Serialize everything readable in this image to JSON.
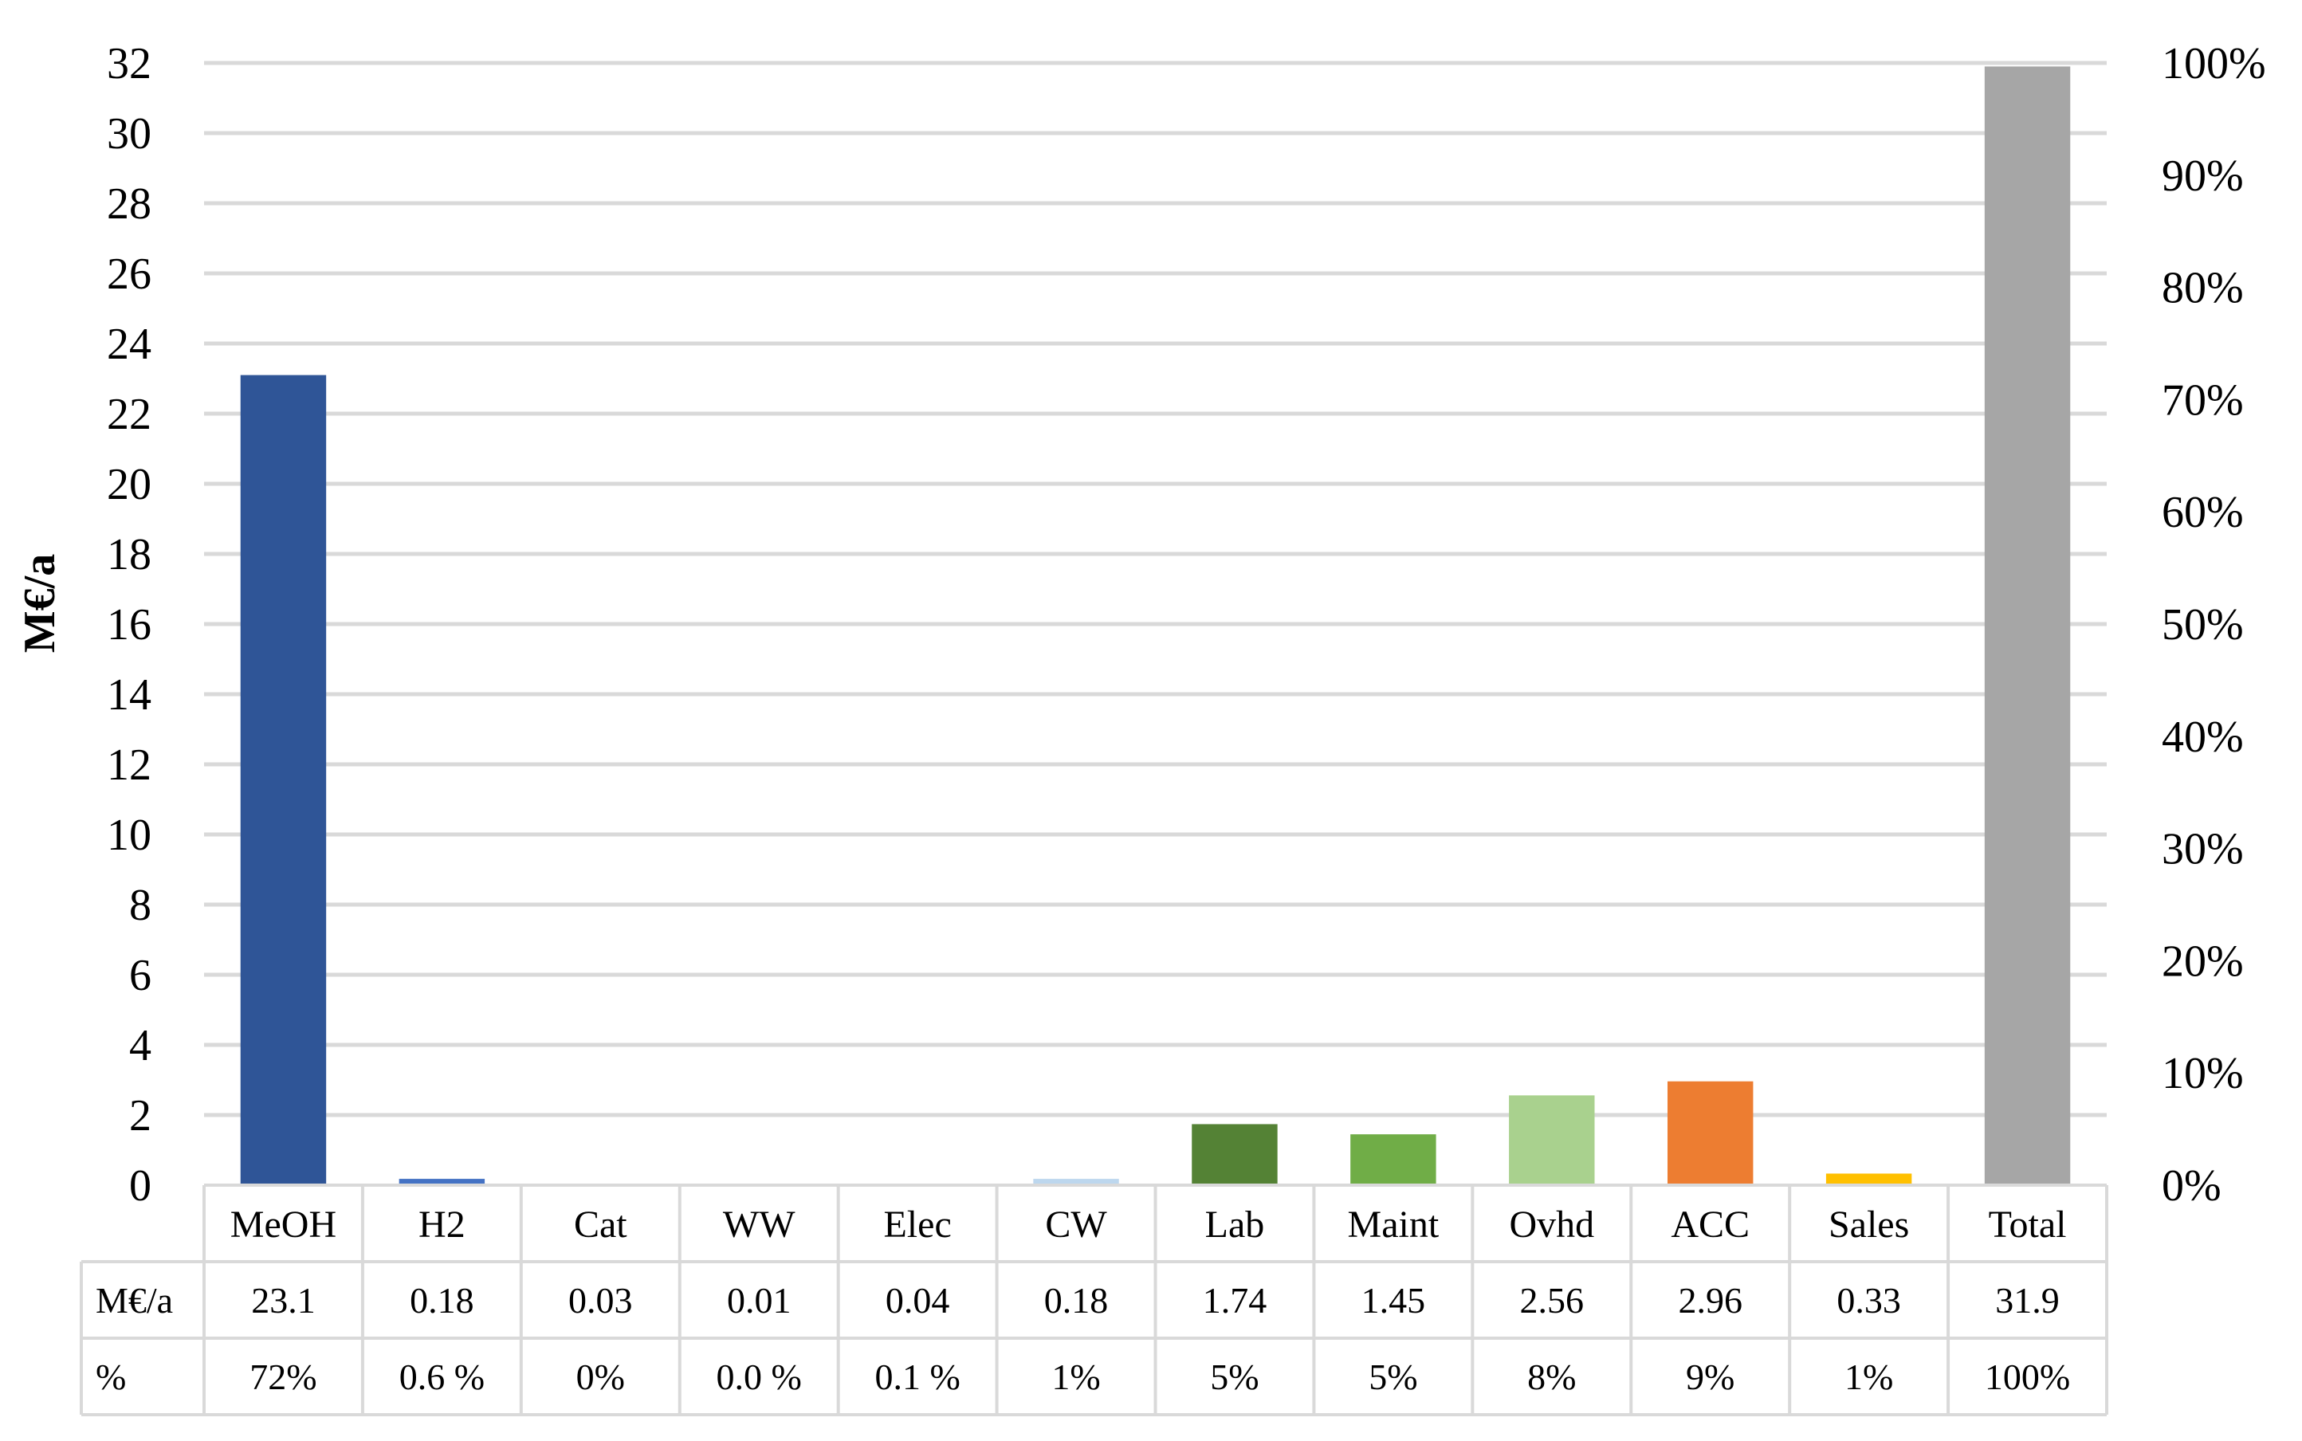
{
  "chart_data": {
    "type": "bar",
    "title": "",
    "xlabel": "",
    "ylabel": "M€/a",
    "ylim": [
      0,
      32
    ],
    "y_ticks": [
      "0",
      "2",
      "4",
      "6",
      "8",
      "10",
      "12",
      "14",
      "16",
      "18",
      "20",
      "22",
      "24",
      "26",
      "28",
      "30",
      "32"
    ],
    "y2lim": [
      0,
      100
    ],
    "y2_ticks": [
      "0%",
      "10%",
      "20%",
      "30%",
      "40%",
      "50%",
      "60%",
      "70%",
      "80%",
      "90%",
      "100%"
    ],
    "grid": true,
    "legend": "none",
    "categories": [
      "MeOH",
      "H2",
      "Cat",
      "WW",
      "Elec",
      "CW",
      "Lab",
      "Maint",
      "Ovhd",
      "ACC",
      "Sales",
      "Total"
    ],
    "values": [
      23.1,
      0.18,
      0.03,
      0.01,
      0.04,
      0.18,
      1.74,
      1.45,
      2.56,
      2.96,
      0.33,
      31.9
    ],
    "colors": [
      "#2f5597",
      "#4472c4",
      "#8faadc",
      "#9dc3e6",
      "#b4c7e7",
      "#bdd7ee",
      "#548235",
      "#70ad47",
      "#a9d18e",
      "#ed7d31",
      "#ffc000",
      "#a6a6a6"
    ],
    "table": {
      "row_headers": [
        "M€/a",
        "%"
      ],
      "rows": [
        [
          "23.1",
          "0.18",
          "0.03",
          "0.01",
          "0.04",
          "0.18",
          "1.74",
          "1.45",
          "2.56",
          "2.96",
          "0.33",
          "31.9"
        ],
        [
          "72%",
          "0.6 %",
          "0%",
          "0.0 %",
          "0.1 %",
          "1%",
          "5%",
          "5%",
          "8%",
          "9%",
          "1%",
          "100%"
        ]
      ]
    }
  }
}
